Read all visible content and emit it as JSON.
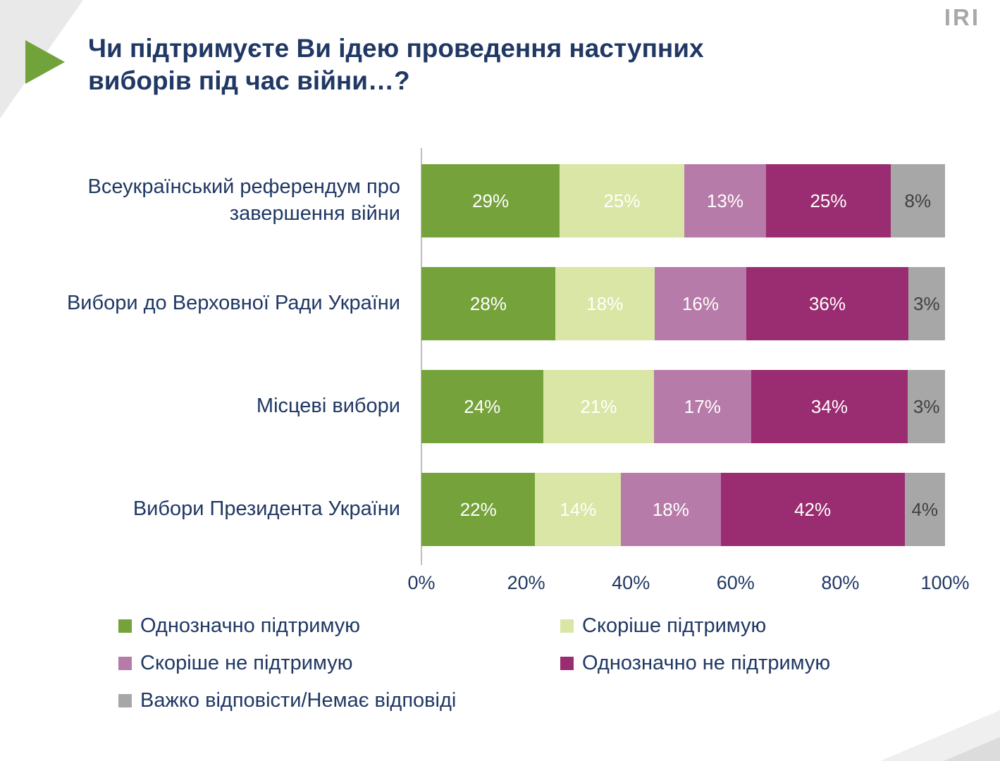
{
  "logo": "IRI",
  "title": {
    "line1": "Чи підтримуєте Ви ідею проведення наступних",
    "line2": "виборів під час війни…?"
  },
  "chart_data": {
    "type": "bar",
    "stacked": true,
    "orientation": "horizontal",
    "title": "Чи підтримуєте Ви ідею проведення наступних виборів під час війни…?",
    "categories": [
      "Всеукраїнський референдум про завершення війни",
      "Вибори до Верховної Ради України",
      "Місцеві вибори",
      "Вибори Президента України"
    ],
    "series": [
      {
        "name": "Однозначно підтримую",
        "color": "#76a23c",
        "label_color": "#ffffff",
        "values": [
          29,
          28,
          24,
          22
        ]
      },
      {
        "name": "Скоріше підтримую",
        "color": "#d9e6a5",
        "label_color": "#ffffff",
        "values": [
          25,
          18,
          21,
          14
        ]
      },
      {
        "name": "Скоріше не підтримую",
        "color": "#b77ba9",
        "label_color": "#ffffff",
        "values": [
          13,
          16,
          17,
          18
        ]
      },
      {
        "name": "Однозначно не підтримую",
        "color": "#9a2d71",
        "label_color": "#ffffff",
        "values": [
          25,
          36,
          34,
          42
        ]
      },
      {
        "name": "Важко відповісти/Немає відповіді",
        "color": "#a7a7a7",
        "label_color": "#404040",
        "values": [
          8,
          3,
          3,
          4
        ]
      }
    ],
    "value_suffix": "%",
    "x_ticks": [
      "0%",
      "20%",
      "40%",
      "60%",
      "80%",
      "100%"
    ],
    "xlim": [
      0,
      100
    ],
    "xlabel": "",
    "ylabel": "",
    "legend_position": "bottom"
  }
}
